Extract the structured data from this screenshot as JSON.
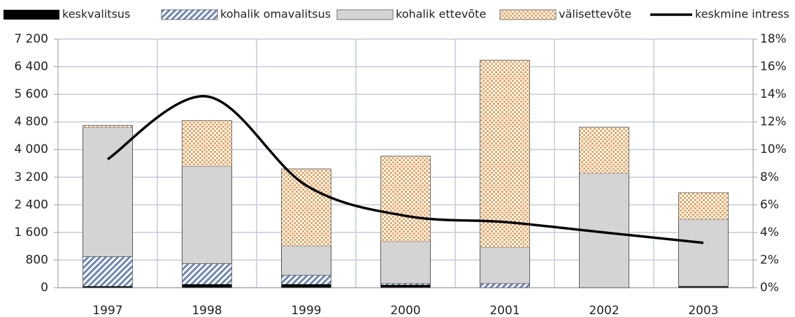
{
  "chart_data": {
    "type": "bar_line",
    "categories": [
      "1997",
      "1998",
      "1999",
      "2000",
      "2001",
      "2002",
      "2003"
    ],
    "series": [
      {
        "name": "keskvalitsus",
        "type": "bar",
        "color": "#000000",
        "values": [
          40,
          100,
          100,
          80,
          0,
          0,
          40
        ]
      },
      {
        "name": "kohalik omavalitsus",
        "type": "bar",
        "color": "#6d86b3",
        "pattern": "hatch",
        "values": [
          860,
          600,
          260,
          40,
          120,
          0,
          0
        ]
      },
      {
        "name": "kohalik ettevõte",
        "type": "bar",
        "color": "#d4d4d4",
        "values": [
          3750,
          2820,
          850,
          1220,
          1050,
          3320,
          1940
        ]
      },
      {
        "name": "välisettevõte",
        "type": "bar",
        "color": "#e8a96a",
        "pattern": "checker",
        "values": [
          50,
          1320,
          2230,
          2470,
          5420,
          1330,
          770
        ]
      },
      {
        "name": "keskmine intress",
        "type": "line",
        "axis": "y2",
        "color": "#000000",
        "smooth": true,
        "values": [
          9.3,
          13.85,
          7.4,
          5.2,
          4.75,
          4.0,
          3.25
        ]
      }
    ],
    "ylim": [
      0,
      7200
    ],
    "yticks": [
      0,
      800,
      {
        "value": 1600,
        "label": "1 600"
      },
      {
        "value": 2400,
        "label": "2 400"
      },
      {
        "value": 3200,
        "label": "3 200"
      },
      {
        "value": 4000,
        "label": "4 000"
      },
      {
        "value": 4800,
        "label": "4 800"
      },
      {
        "value": 5600,
        "label": "5 600"
      },
      {
        "value": 6400,
        "label": "6 400"
      },
      {
        "value": 7200,
        "label": "7 200"
      }
    ],
    "y2lim": [
      0,
      18
    ],
    "y2ticks": [
      {
        "value": 0,
        "label": "0%"
      },
      {
        "value": 2,
        "label": "2%"
      },
      {
        "value": 4,
        "label": "4%"
      },
      {
        "value": 6,
        "label": "6%"
      },
      {
        "value": 8,
        "label": "8%"
      },
      {
        "value": 10,
        "label": "10%"
      },
      {
        "value": 12,
        "label": "12%"
      },
      {
        "value": 14,
        "label": "14%"
      },
      {
        "value": 16,
        "label": "16%"
      },
      {
        "value": 18,
        "label": "18%"
      }
    ],
    "grid": true,
    "legend": "top"
  }
}
